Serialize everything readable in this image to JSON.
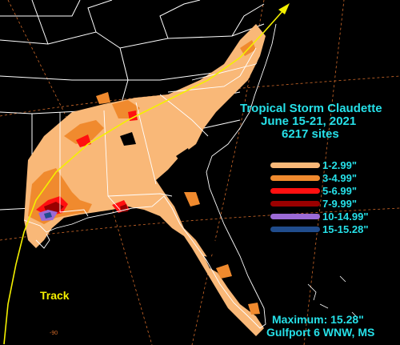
{
  "title": {
    "line1": "Tropical Storm Claudette",
    "line2": "June 15-21, 2021",
    "line3": "6217 sites"
  },
  "legend": [
    {
      "label": "1-2.99\"",
      "color": "#f9b878"
    },
    {
      "label": "3-4.99\"",
      "color": "#f08a2e"
    },
    {
      "label": "5-6.99\"",
      "color": "#ff1010"
    },
    {
      "label": "7-9.99\"",
      "color": "#9a0000"
    },
    {
      "label": "10-14.99\"",
      "color": "#9b6ad6"
    },
    {
      "label": "15-15.28\"",
      "color": "#204c8c"
    }
  ],
  "track_label": "Track",
  "maximum": {
    "line1": "Maximum:  15.28\"",
    "line2": "Gulfport 6 WNW, MS"
  },
  "longitude_label": "-90",
  "colors": {
    "background": "#000000",
    "text": "#26e0e8",
    "track": "#f4f000",
    "borders": "#ffffff",
    "graticule": "#d06a2a"
  }
}
